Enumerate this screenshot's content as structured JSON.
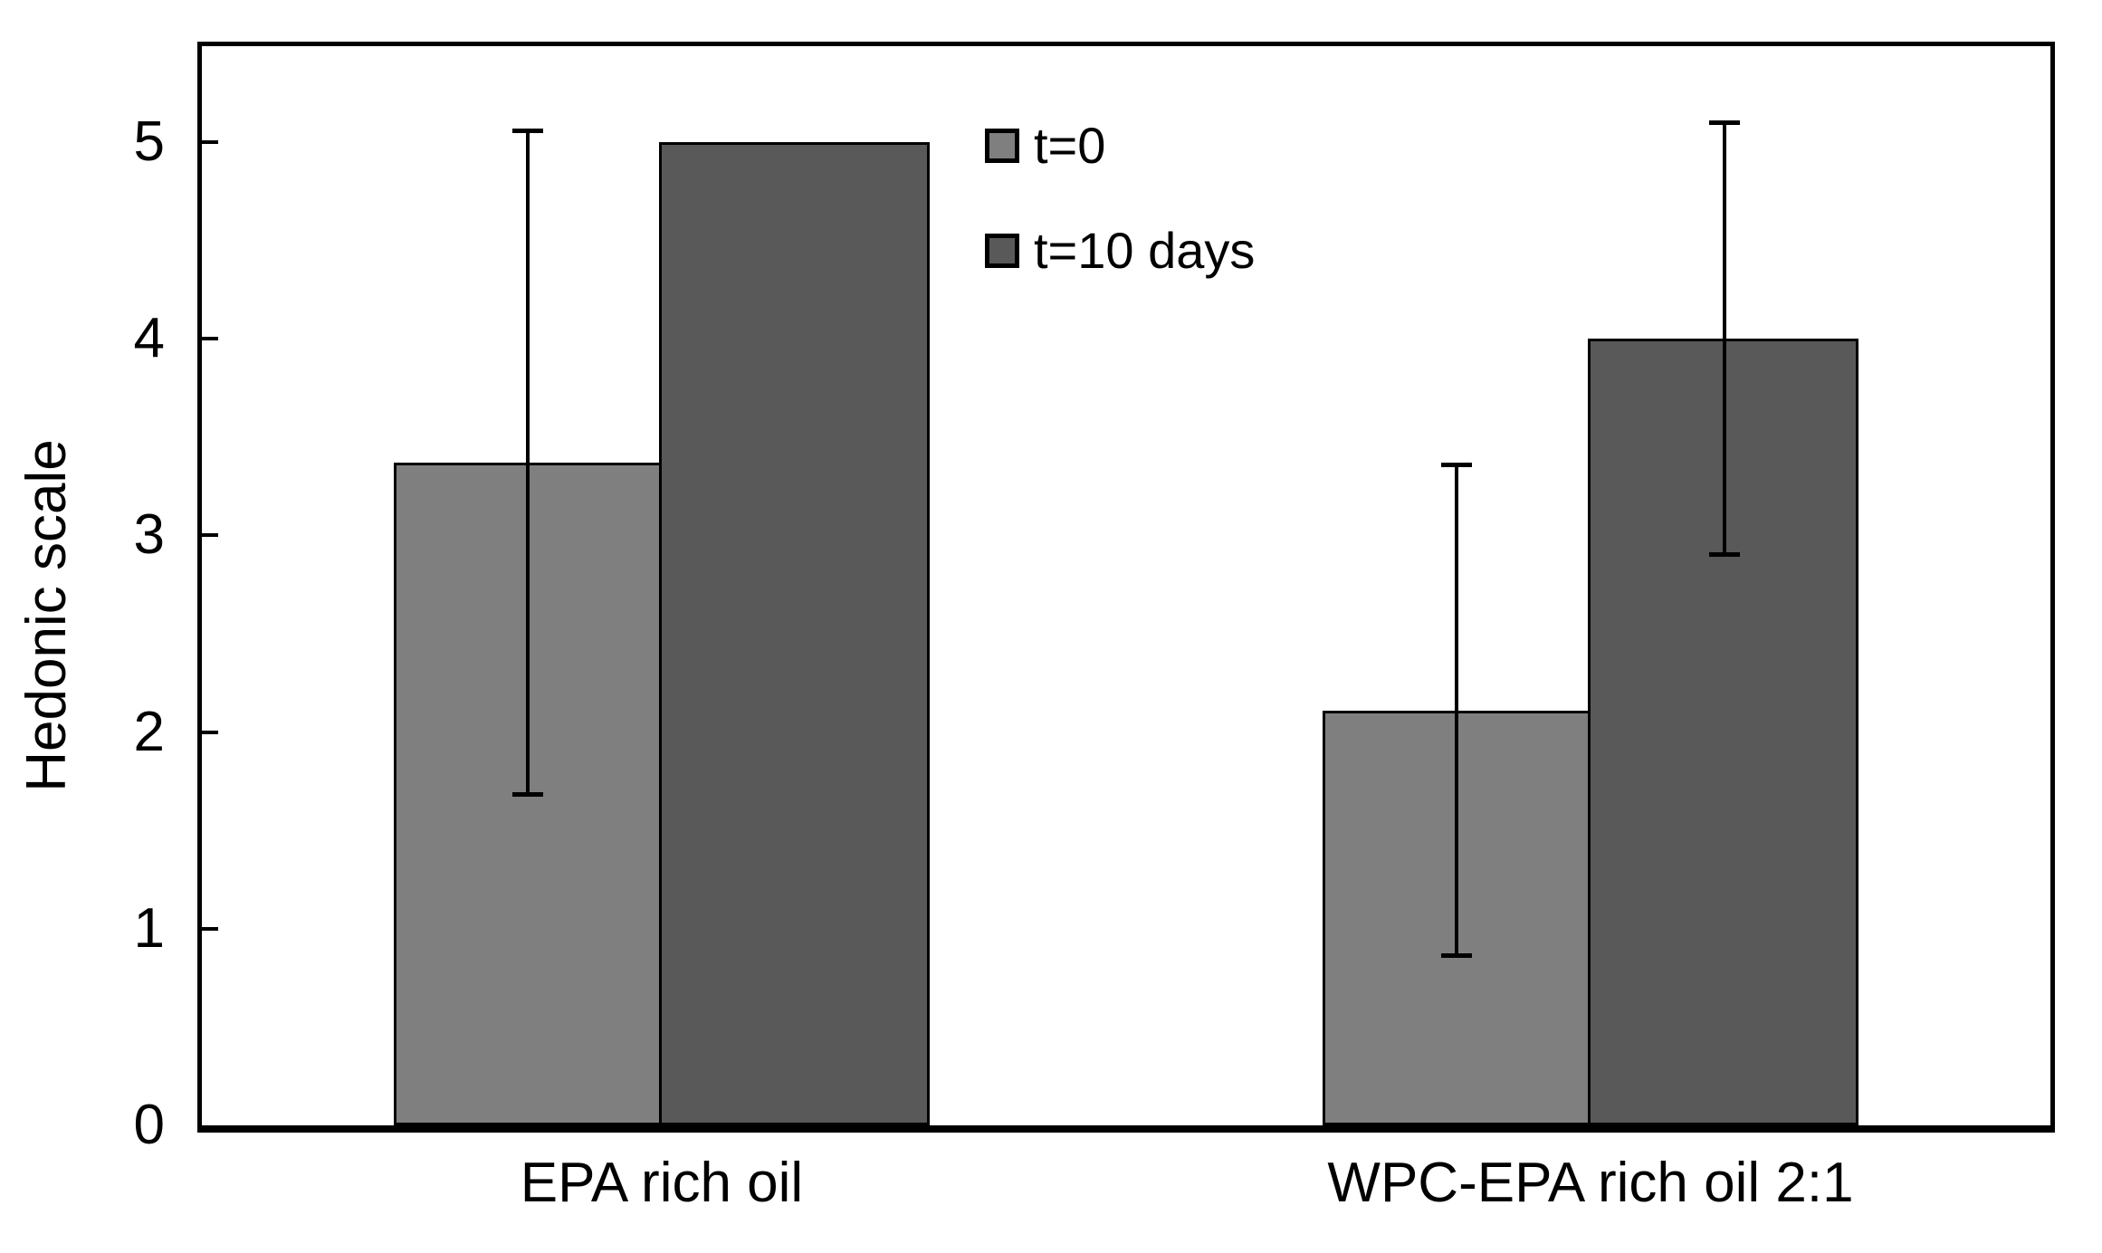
{
  "chart_data": {
    "type": "bar",
    "title": "",
    "xlabel": "",
    "ylabel": "Hedonic scale",
    "categories": [
      "EPA rich oil",
      "WPC-EPA rich oil 2:1"
    ],
    "series": [
      {
        "name": "t=0",
        "color": "#7f7f7f",
        "values": [
          3.37,
          2.11
        ],
        "error_bars": [
          1.69,
          1.25
        ]
      },
      {
        "name": "t=10 days",
        "color": "#595959",
        "values": [
          5.0,
          4.0
        ],
        "error_bars": [
          0,
          1.1
        ]
      }
    ],
    "ylim": [
      0,
      5.51
    ],
    "yticks": [
      0,
      1,
      2,
      3,
      4,
      5
    ],
    "grid": false,
    "legend_position": "inside-upper-center",
    "frame": "full-box",
    "background_color": "#ffffff",
    "axis_color": "#000000",
    "bar_outline_color": "#000000",
    "error_bar_color": "#000000"
  }
}
